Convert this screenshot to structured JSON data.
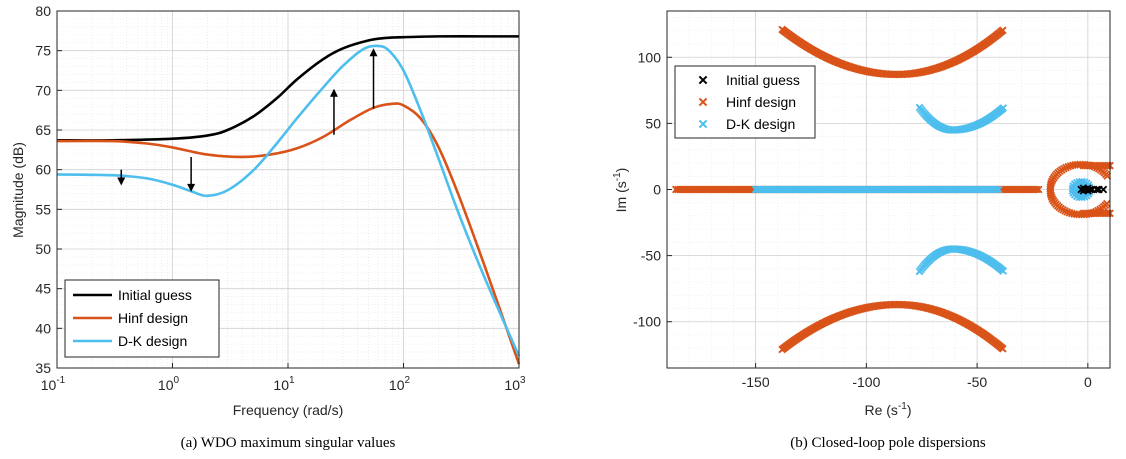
{
  "chart_data": [
    {
      "type": "line",
      "caption": "(a) WDO maximum singular values",
      "xlabel": "Frequency (rad/s)",
      "ylabel": "Magnitude (dB)",
      "x_scale": "log",
      "xlim": [
        0.1,
        1000
      ],
      "ylim": [
        35,
        80
      ],
      "x_tick_labels": [
        "10",
        "10",
        "10",
        "10",
        "10"
      ],
      "x_tick_exponents": [
        "-1",
        "0",
        "1",
        "2",
        "3"
      ],
      "x_ticks": [
        0.1,
        1,
        10,
        100,
        1000
      ],
      "y_ticks": [
        35,
        40,
        45,
        50,
        55,
        60,
        65,
        70,
        75,
        80
      ],
      "y_tick_labels": [
        "35",
        "40",
        "45",
        "50",
        "55",
        "60",
        "65",
        "70",
        "75",
        "80"
      ],
      "grid": true,
      "legend_position": "bottom-left",
      "series": [
        {
          "name": "Initial guess",
          "color": "#000000",
          "x": [
            0.1,
            0.3,
            1,
            2,
            3,
            5,
            8,
            12,
            20,
            30,
            50,
            70,
            100,
            200,
            500,
            1000
          ],
          "y": [
            63.7,
            63.7,
            63.9,
            64.3,
            65.0,
            66.7,
            69.0,
            71.4,
            73.9,
            75.3,
            76.3,
            76.6,
            76.7,
            76.8,
            76.8,
            76.8
          ]
        },
        {
          "name": "Hinf design",
          "color": "#d95319",
          "x": [
            0.1,
            0.3,
            0.6,
            1,
            2,
            4,
            7,
            12,
            20,
            35,
            55,
            80,
            100,
            140,
            200,
            300,
            500,
            1000
          ],
          "y": [
            63.6,
            63.6,
            63.3,
            62.8,
            61.9,
            61.6,
            61.9,
            62.7,
            64.1,
            66.3,
            67.8,
            68.3,
            68.1,
            66.5,
            62.9,
            56.8,
            48.0,
            35.5
          ]
        },
        {
          "name": "D-K design",
          "color": "#4dbeee",
          "x": [
            0.1,
            0.3,
            0.6,
            1,
            1.5,
            2,
            3,
            5,
            8,
            12,
            20,
            30,
            45,
            60,
            75,
            100,
            140,
            200,
            300,
            500,
            1000
          ],
          "y": [
            59.4,
            59.3,
            58.9,
            58.1,
            57.2,
            56.7,
            57.4,
            59.9,
            63.3,
            66.5,
            70.3,
            73.1,
            75.2,
            75.6,
            75.0,
            72.5,
            67.5,
            61.5,
            54.5,
            46.5,
            36.5
          ]
        }
      ],
      "annotations": [
        {
          "type": "arrow",
          "x": 0.36,
          "y_from": 60.0,
          "y_to": 58.0,
          "direction": "down"
        },
        {
          "type": "arrow",
          "x": 1.45,
          "y_from": 61.6,
          "y_to": 57.2,
          "direction": "down"
        },
        {
          "type": "arrow",
          "x": 25,
          "y_from": 64.4,
          "y_to": 70.2,
          "direction": "up"
        },
        {
          "type": "arrow",
          "x": 55,
          "y_from": 67.7,
          "y_to": 75.3,
          "direction": "up"
        }
      ]
    },
    {
      "type": "scatter",
      "caption": "(b) Closed-loop pole dispersions",
      "xlabel": "Re (s",
      "xlabel_sup": "-1",
      "xlabel_end": ")",
      "ylabel": "Im (s",
      "ylabel_sup": "-1",
      "ylabel_end": ")",
      "xlim": [
        -190,
        10
      ],
      "ylim": [
        -135,
        135
      ],
      "x_ticks": [
        -150,
        -100,
        -50,
        0
      ],
      "x_tick_labels": [
        "-150",
        "-100",
        "-50",
        "0"
      ],
      "y_ticks": [
        -100,
        -50,
        0,
        50,
        100
      ],
      "y_tick_labels": [
        "-100",
        "-50",
        "0",
        "50",
        "100"
      ],
      "grid": true,
      "legend_position": "top-left",
      "series": [
        {
          "name": "Initial guess",
          "color": "#000000",
          "points": [
            [
              -3,
              0
            ],
            [
              -1,
              0
            ],
            [
              1,
              0
            ],
            [
              2,
              0
            ],
            [
              4,
              0
            ],
            [
              5,
              0
            ],
            [
              7,
              0
            ],
            [
              -2,
              1
            ],
            [
              -2,
              -1
            ],
            [
              0,
              1
            ],
            [
              0,
              -1
            ]
          ]
        },
        {
          "name": "Hinf design",
          "color": "#d95319",
          "branches": [
            {
              "kind": "arc",
              "x_from": -138,
              "x_to": -38,
              "vertex_x": -86,
              "vertex_y": 87,
              "end_y": 121
            },
            {
              "kind": "arc",
              "x_from": -138,
              "x_to": -38,
              "vertex_x": -86,
              "vertex_y": -87,
              "end_y": -121
            },
            {
              "kind": "real-axis",
              "x_from": -186,
              "x_to": -22
            },
            {
              "kind": "loop",
              "center_x": -3,
              "radius_x": 14,
              "radius_y": 19
            }
          ]
        },
        {
          "name": "D-K design",
          "color": "#4dbeee",
          "branches": [
            {
              "kind": "arc",
              "x_from": -76,
              "x_to": -38,
              "vertex_x": -61,
              "vertex_y": 45,
              "end_y": 62
            },
            {
              "kind": "arc",
              "x_from": -76,
              "x_to": -38,
              "vertex_x": -61,
              "vertex_y": -45,
              "end_y": -62
            },
            {
              "kind": "real-axis",
              "x_from": -150,
              "x_to": -40
            },
            {
              "kind": "blob",
              "center_x": -3,
              "radius_x": 4,
              "radius_y": 6
            }
          ]
        }
      ]
    }
  ]
}
